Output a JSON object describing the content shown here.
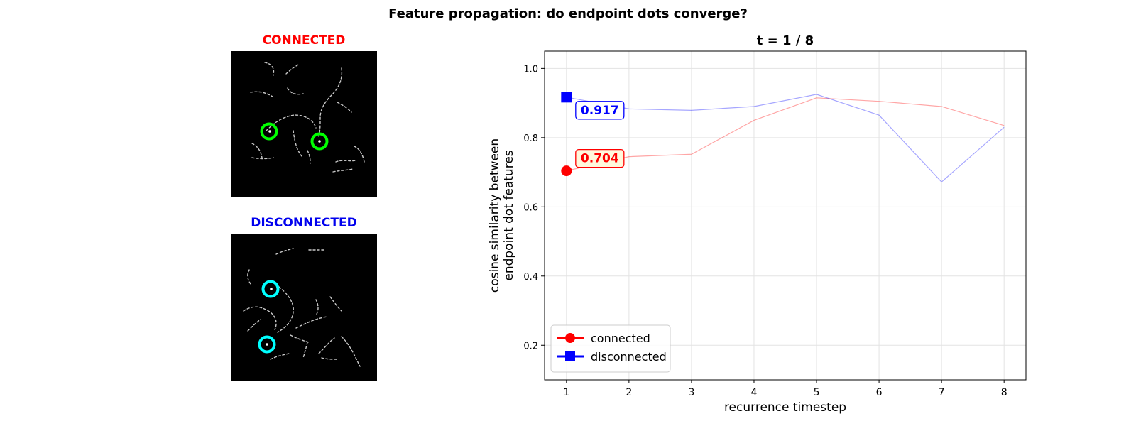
{
  "suptitle": "Feature propagation: do endpoint dots converge?",
  "panels": {
    "connected": {
      "title": "CONNECTED",
      "title_color": "#ff0000",
      "marker_color": "#00ff00"
    },
    "disconnected": {
      "title": "DISCONNECTED",
      "title_color": "#0000ee",
      "marker_color": "#00ffff"
    }
  },
  "chart_data": {
    "type": "line",
    "title": "t = 1 / 8",
    "xlabel": "recurrence timestep",
    "ylabel": "cosine similarity between endpoint dot features",
    "xlim": [
      0.65,
      8.35
    ],
    "ylim": [
      0.1,
      1.05
    ],
    "xticks": [
      1,
      2,
      3,
      4,
      5,
      6,
      7,
      8
    ],
    "yticks": [
      0.2,
      0.4,
      0.6,
      0.8,
      1.0
    ],
    "ytick_labels": [
      "0.2",
      "0.4",
      "0.6",
      "0.8",
      "1.0"
    ],
    "grid": true,
    "legend_position": "lower-left",
    "current_timestep": 1,
    "x": [
      1,
      2,
      3,
      4,
      5,
      6,
      7,
      8
    ],
    "series": [
      {
        "name": "connected",
        "color": "#ff0000",
        "marker": "circle",
        "values": [
          0.704,
          0.745,
          0.752,
          0.85,
          0.915,
          0.905,
          0.89,
          0.835
        ],
        "current_label": "0.704",
        "label_bg": "#fff8dc"
      },
      {
        "name": "disconnected",
        "color": "#0000ff",
        "marker": "square",
        "values": [
          0.917,
          0.883,
          0.879,
          0.89,
          0.925,
          0.865,
          0.672,
          0.83
        ],
        "current_label": "0.917",
        "label_bg": "#ffffff"
      }
    ]
  }
}
